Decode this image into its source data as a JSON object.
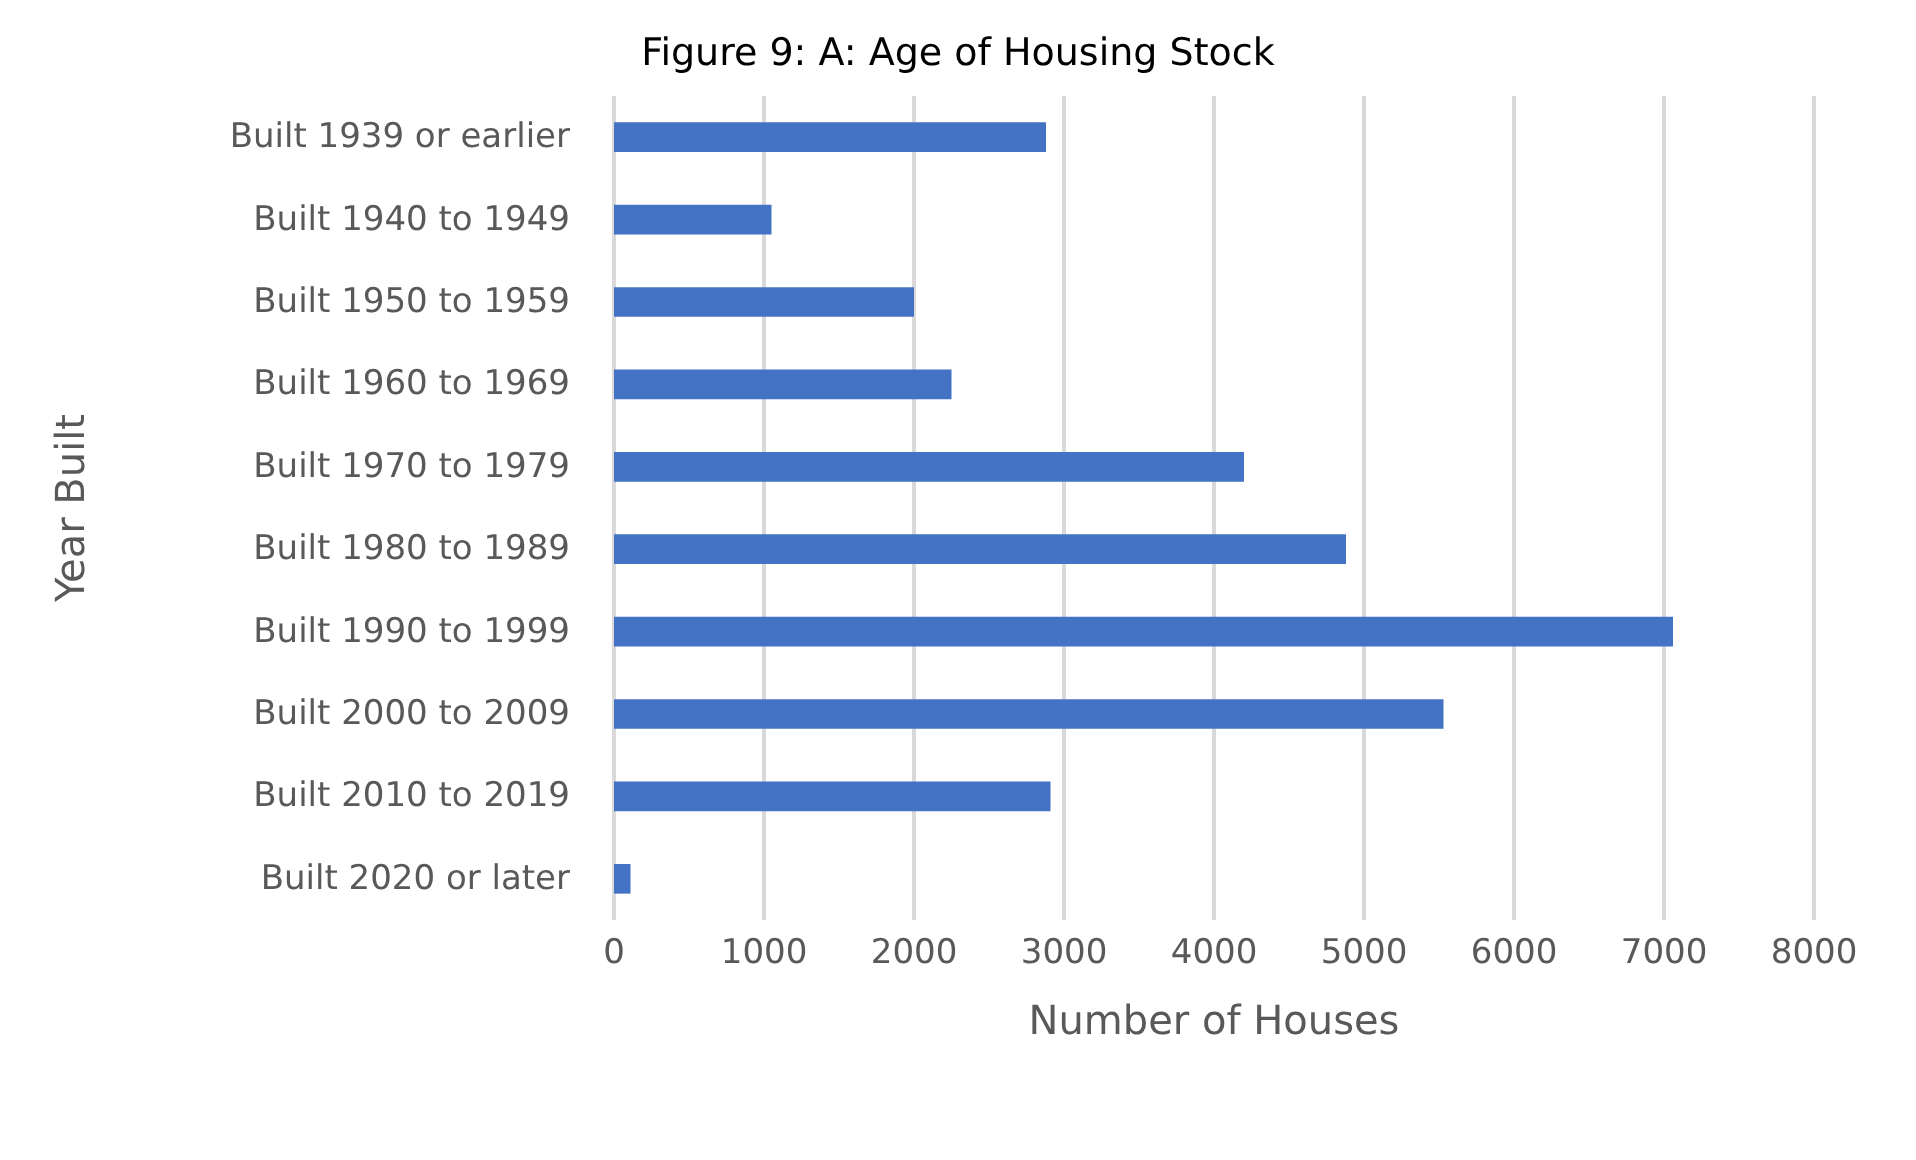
{
  "chart_data": {
    "type": "bar",
    "orientation": "horizontal",
    "title": "Figure 9: A: Age of Housing Stock",
    "xlabel": "Number of Houses",
    "ylabel": "Year Built",
    "categories": [
      "Built 1939 or earlier",
      "Built 1940 to 1949",
      "Built 1950 to 1959",
      "Built 1960 to 1969",
      "Built 1970 to 1979",
      "Built 1980 to 1989",
      "Built 1990 to 1999",
      "Built 2000 to 2009",
      "Built 2010 to 2019",
      "Built 2020 or later"
    ],
    "values": [
      2880,
      1050,
      2000,
      2250,
      4200,
      4880,
      7060,
      5530,
      2910,
      110
    ],
    "color": "#4472c4",
    "xlim": [
      0,
      8000
    ],
    "xticks": [
      0,
      1000,
      2000,
      3000,
      4000,
      5000,
      6000,
      7000,
      8000
    ],
    "grid": "x"
  }
}
